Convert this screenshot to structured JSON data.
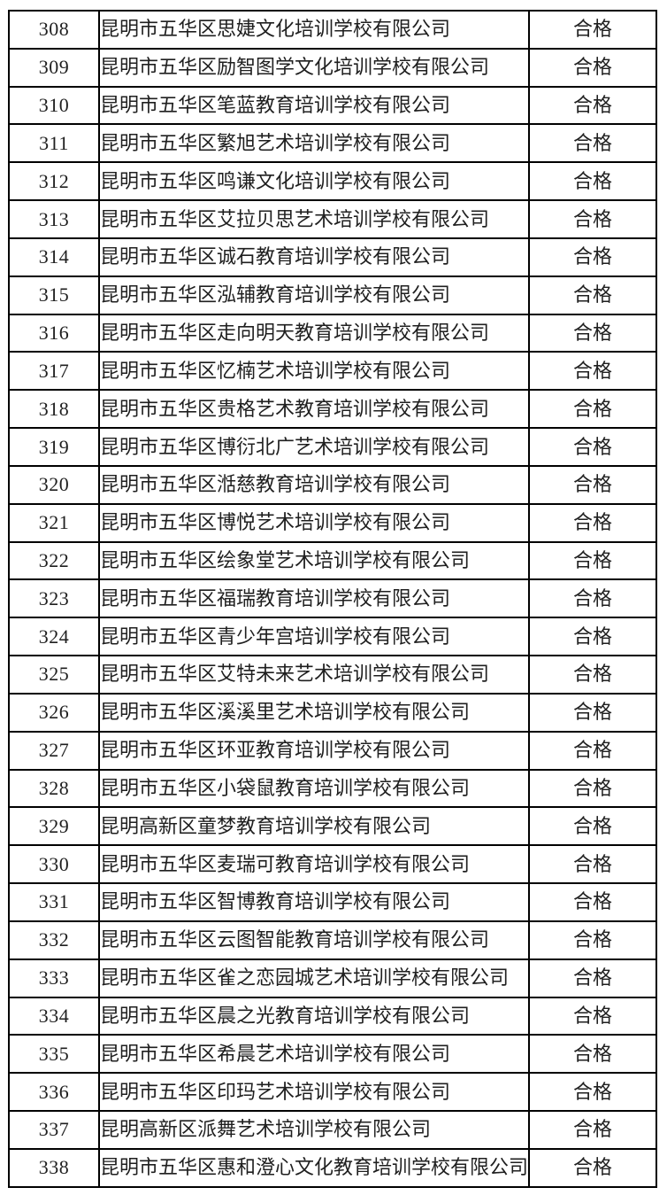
{
  "table": {
    "status_pass_label": "合格",
    "rows": [
      {
        "no": "308",
        "name": "昆明市五华区思婕文化培训学校有限公司",
        "status": "合格"
      },
      {
        "no": "309",
        "name": "昆明市五华区励智图学文化培训学校有限公司",
        "status": "合格"
      },
      {
        "no": "310",
        "name": "昆明市五华区笔蓝教育培训学校有限公司",
        "status": "合格"
      },
      {
        "no": "311",
        "name": "昆明市五华区繁旭艺术培训学校有限公司",
        "status": "合格"
      },
      {
        "no": "312",
        "name": "昆明市五华区鸣谦文化培训学校有限公司",
        "status": "合格"
      },
      {
        "no": "313",
        "name": "昆明市五华区艾拉贝思艺术培训学校有限公司",
        "status": "合格"
      },
      {
        "no": "314",
        "name": "昆明市五华区诚石教育培训学校有限公司",
        "status": "合格"
      },
      {
        "no": "315",
        "name": "昆明市五华区泓辅教育培训学校有限公司",
        "status": "合格"
      },
      {
        "no": "316",
        "name": "昆明市五华区走向明天教育培训学校有限公司",
        "status": "合格"
      },
      {
        "no": "317",
        "name": "昆明市五华区忆楠艺术培训学校有限公司",
        "status": "合格"
      },
      {
        "no": "318",
        "name": "昆明市五华区贵格艺术教育培训学校有限公司",
        "status": "合格"
      },
      {
        "no": "319",
        "name": "昆明市五华区博衍北广艺术培训学校有限公司",
        "status": "合格"
      },
      {
        "no": "320",
        "name": "昆明市五华区湉慈教育培训学校有限公司",
        "status": "合格"
      },
      {
        "no": "321",
        "name": "昆明市五华区博悦艺术培训学校有限公司",
        "status": "合格"
      },
      {
        "no": "322",
        "name": "昆明市五华区绘象堂艺术培训学校有限公司",
        "status": "合格"
      },
      {
        "no": "323",
        "name": "昆明市五华区福瑞教育培训学校有限公司",
        "status": "合格"
      },
      {
        "no": "324",
        "name": "昆明市五华区青少年宫培训学校有限公司",
        "status": "合格"
      },
      {
        "no": "325",
        "name": "昆明市五华区艾特未来艺术培训学校有限公司",
        "status": "合格"
      },
      {
        "no": "326",
        "name": "昆明市五华区溪溪里艺术培训学校有限公司",
        "status": "合格"
      },
      {
        "no": "327",
        "name": "昆明市五华区环亚教育培训学校有限公司",
        "status": "合格"
      },
      {
        "no": "328",
        "name": "昆明市五华区小袋鼠教育培训学校有限公司",
        "status": "合格"
      },
      {
        "no": "329",
        "name": "昆明高新区童梦教育培训学校有限公司",
        "status": "合格"
      },
      {
        "no": "330",
        "name": "昆明市五华区麦瑞可教育培训学校有限公司",
        "status": "合格"
      },
      {
        "no": "331",
        "name": "昆明市五华区智博教育培训学校有限公司",
        "status": "合格"
      },
      {
        "no": "332",
        "name": "昆明市五华区云图智能教育培训学校有限公司",
        "status": "合格"
      },
      {
        "no": "333",
        "name": "昆明市五华区雀之恋园城艺术培训学校有限公司",
        "status": "合格"
      },
      {
        "no": "334",
        "name": "昆明市五华区晨之光教育培训学校有限公司",
        "status": "合格"
      },
      {
        "no": "335",
        "name": "昆明市五华区希晨艺术培训学校有限公司",
        "status": "合格"
      },
      {
        "no": "336",
        "name": "昆明市五华区印玛艺术培训学校有限公司",
        "status": "合格"
      },
      {
        "no": "337",
        "name": "昆明高新区派舞艺术培训学校有限公司",
        "status": "合格"
      },
      {
        "no": "338",
        "name": "昆明市五华区惠和澄心文化教育培训学校有限公司",
        "status": "合格"
      }
    ]
  },
  "colors": {
    "border": "#000000",
    "text": "#1f1f1f",
    "background": "#ffffff"
  }
}
